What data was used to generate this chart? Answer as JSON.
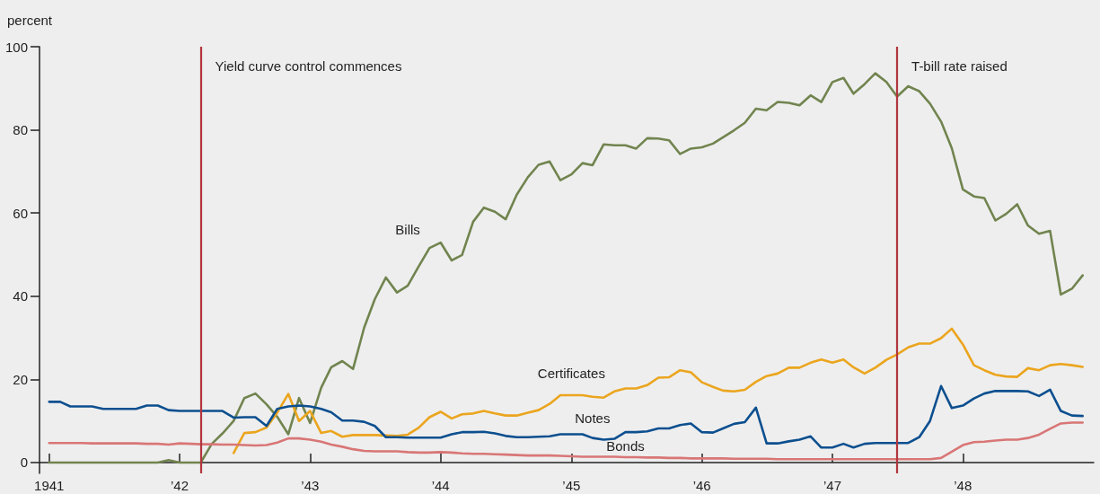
{
  "chart_data": {
    "type": "line",
    "ylabel": "percent",
    "x": [
      "1941-01",
      "1941-02",
      "1941-03",
      "1941-04",
      "1941-05",
      "1941-06",
      "1941-07",
      "1941-08",
      "1941-09",
      "1941-10",
      "1941-11",
      "1941-12",
      "1942-01",
      "1942-02",
      "1942-03",
      "1942-04",
      "1942-05",
      "1942-06",
      "1942-07",
      "1942-08",
      "1942-09",
      "1942-10",
      "1942-11",
      "1942-12",
      "1943-01",
      "1943-02",
      "1943-03",
      "1943-04",
      "1943-05",
      "1943-06",
      "1943-07",
      "1943-08",
      "1943-09",
      "1943-10",
      "1943-11",
      "1943-12",
      "1944-01",
      "1944-02",
      "1944-03",
      "1944-04",
      "1944-05",
      "1944-06",
      "1944-07",
      "1944-08",
      "1944-09",
      "1944-10",
      "1944-11",
      "1944-12",
      "1945-01",
      "1945-02",
      "1945-03",
      "1945-04",
      "1945-05",
      "1945-06",
      "1945-07",
      "1945-08",
      "1945-09",
      "1945-10",
      "1945-11",
      "1945-12",
      "1946-01",
      "1946-02",
      "1946-03",
      "1946-04",
      "1946-05",
      "1946-06",
      "1946-07",
      "1946-08",
      "1946-09",
      "1946-10",
      "1946-11",
      "1946-12",
      "1947-01",
      "1947-02",
      "1947-03",
      "1947-04",
      "1947-05",
      "1947-06",
      "1947-07",
      "1947-08",
      "1947-09",
      "1947-10",
      "1947-11",
      "1947-12",
      "1948-01",
      "1948-02",
      "1948-03",
      "1948-04",
      "1948-05",
      "1948-06",
      "1948-07",
      "1948-08",
      "1948-09",
      "1948-10",
      "1948-11",
      "1948-12"
    ],
    "series": [
      {
        "name": "Bills",
        "color": "#71844f",
        "values": [
          0,
          0,
          0,
          0,
          0,
          0,
          0,
          0,
          0,
          0,
          0,
          0.6,
          0,
          0,
          0,
          4.5,
          7,
          10,
          15.5,
          16.6,
          14,
          11,
          6.8,
          15.5,
          9.5,
          18.0,
          22.9,
          24.4,
          22.5,
          32.4,
          39.3,
          44.5,
          40.9,
          42.5,
          47.2,
          51.6,
          52.9,
          48.6,
          49.9,
          57.9,
          61.3,
          60.3,
          58.5,
          64.4,
          68.6,
          71.6,
          72.4,
          67.9,
          69.3,
          72.0,
          71.5,
          76.5,
          76.3,
          76.3,
          75.5,
          78.0,
          77.9,
          77.5,
          74.2,
          75.5,
          75.8,
          76.7,
          78.2,
          79.9,
          81.7,
          85.1,
          84.7,
          86.7,
          86.5,
          85.9,
          88.3,
          86.7,
          91.5,
          92.5,
          88.7,
          91.0,
          93.6,
          91.5,
          88.0,
          90.5,
          89.3,
          86.3,
          82.0,
          75.6,
          65.7,
          64.0,
          63.6,
          58.2,
          59.8,
          62.1,
          57.0,
          55.0,
          55.7,
          40.4,
          41.8,
          45.0
        ]
      },
      {
        "name": "Certificates",
        "color": "#eba51e",
        "values": [
          null,
          null,
          null,
          null,
          null,
          null,
          null,
          null,
          null,
          null,
          null,
          null,
          null,
          null,
          null,
          null,
          null,
          2.3,
          7.1,
          7.3,
          8.4,
          12,
          16.5,
          10,
          12.4,
          7.1,
          7.6,
          6.2,
          6.6,
          6.6,
          6.6,
          6.5,
          6.4,
          6.7,
          8.4,
          10.9,
          12.2,
          10.6,
          11.6,
          11.8,
          12.4,
          11.8,
          11.3,
          11.3,
          12.0,
          12.6,
          14.1,
          16.2,
          16.2,
          16.2,
          15.8,
          15.6,
          17.1,
          17.8,
          17.8,
          18.6,
          20.4,
          20.5,
          22.2,
          21.7,
          19.3,
          18.2,
          17.3,
          17.1,
          17.5,
          19.4,
          20.8,
          21.4,
          22.8,
          22.8,
          24.0,
          24.8,
          24.0,
          24.8,
          22.9,
          21.4,
          22.8,
          24.7,
          26.0,
          27.7,
          28.6,
          28.6,
          29.9,
          32.2,
          28.4,
          23.4,
          22.2,
          21.1,
          20.7,
          20.6,
          22.7,
          22.2,
          23.4,
          23.7,
          23.4,
          23.0
        ]
      },
      {
        "name": "Notes",
        "color": "#0c4f8f",
        "values": [
          14.6,
          14.6,
          13.5,
          13.5,
          13.5,
          12.9,
          12.9,
          12.9,
          12.9,
          13.7,
          13.7,
          12.6,
          12.4,
          12.4,
          12.4,
          12.4,
          12.4,
          10.8,
          10.9,
          10.9,
          8.8,
          12.9,
          13.5,
          13.7,
          13.5,
          12.9,
          12.1,
          10.1,
          10.1,
          9.8,
          8.8,
          6.1,
          6.1,
          6.0,
          6.0,
          6.0,
          6.0,
          6.8,
          7.3,
          7.3,
          7.4,
          7.0,
          6.4,
          6.1,
          6.1,
          6.2,
          6.3,
          6.8,
          6.8,
          6.8,
          5.9,
          5.5,
          5.7,
          7.3,
          7.3,
          7.5,
          8.2,
          8.2,
          9.0,
          9.4,
          7.3,
          7.2,
          8.2,
          9.3,
          9.7,
          13.2,
          4.6,
          4.6,
          5.1,
          5.5,
          6.3,
          3.6,
          3.6,
          4.5,
          3.6,
          4.5,
          4.7,
          4.7,
          4.7,
          4.7,
          6.1,
          10.0,
          18.4,
          13.1,
          13.7,
          15.4,
          16.6,
          17.2,
          17.2,
          17.2,
          17.1,
          16.0,
          17.5,
          12.4,
          11.3,
          11.2
        ]
      },
      {
        "name": "Bonds",
        "color": "#d97676",
        "values": [
          4.7,
          4.7,
          4.7,
          4.7,
          4.6,
          4.6,
          4.6,
          4.6,
          4.6,
          4.5,
          4.5,
          4.3,
          4.6,
          4.5,
          4.4,
          4.4,
          4.3,
          4.3,
          4.2,
          4.1,
          4.2,
          4.8,
          5.8,
          5.8,
          5.5,
          5.0,
          4.3,
          3.8,
          3.2,
          2.8,
          2.7,
          2.7,
          2.7,
          2.5,
          2.4,
          2.4,
          2.5,
          2.4,
          2.2,
          2.1,
          2.1,
          2.0,
          1.9,
          1.8,
          1.7,
          1.7,
          1.7,
          1.6,
          1.5,
          1.4,
          1.4,
          1.4,
          1.4,
          1.3,
          1.3,
          1.2,
          1.2,
          1.1,
          1.1,
          1.0,
          1.0,
          1.0,
          1.0,
          0.9,
          0.9,
          0.9,
          0.9,
          0.8,
          0.8,
          0.8,
          0.8,
          0.8,
          0.8,
          0.8,
          0.8,
          0.8,
          0.8,
          0.8,
          0.8,
          0.8,
          0.8,
          0.8,
          1.1,
          2.6,
          4.2,
          4.9,
          5.0,
          5.3,
          5.5,
          5.5,
          5.9,
          6.7,
          8.1,
          9.4,
          9.6,
          9.6
        ]
      }
    ],
    "xlim": [
      "1940-12-05",
      "1949-01-01"
    ],
    "xticks": [
      {
        "value": "1941",
        "label": "1941"
      },
      {
        "value": "1942",
        "label": "’42"
      },
      {
        "value": "1943",
        "label": "’43"
      },
      {
        "value": "1944",
        "label": "’44"
      },
      {
        "value": "1945",
        "label": "’45"
      },
      {
        "value": "1946",
        "label": "’46"
      },
      {
        "value": "1947",
        "label": "’47"
      },
      {
        "value": "1948",
        "label": "’48"
      }
    ],
    "ylim": [
      -2.6,
      100
    ],
    "yticks": [
      0,
      20,
      40,
      60,
      80,
      100
    ],
    "ref_lines": [
      {
        "axis": "x",
        "value": "1942-03",
        "label": "Yield curve control commences",
        "color": "#b2353d"
      },
      {
        "axis": "x",
        "value": "1947-07",
        "label": "T-bill rate raised",
        "color": "#b2353d"
      }
    ],
    "grid": false,
    "legend": false,
    "marker": "none",
    "line_style": "solid"
  }
}
